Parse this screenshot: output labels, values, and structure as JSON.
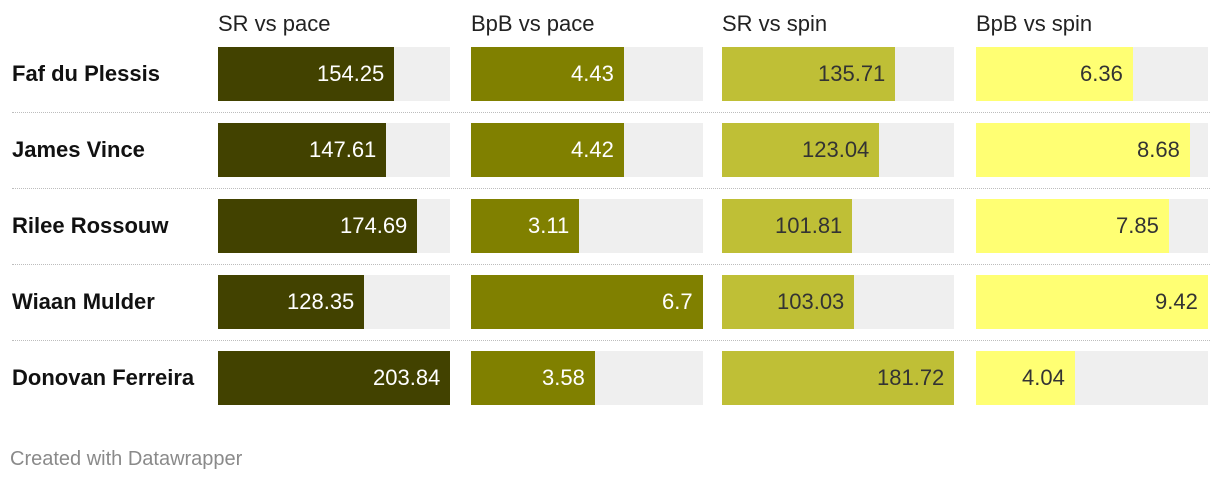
{
  "chart_data": {
    "type": "table",
    "columns": [
      {
        "name": "SR vs pace",
        "max": 203.84,
        "color": "#424200",
        "text_color": "#ffffff"
      },
      {
        "name": "BpB vs pace",
        "max": 6.7,
        "color": "#808000",
        "text_color": "#ffffff"
      },
      {
        "name": "SR vs spin",
        "max": 181.72,
        "color": "#bfbf36",
        "text_color": "#333333"
      },
      {
        "name": "BpB vs spin",
        "max": 9.42,
        "color": "#ffff73",
        "text_color": "#333333"
      }
    ],
    "rows": [
      {
        "player": "Faf du Plessis",
        "values": [
          154.25,
          4.43,
          135.71,
          6.36
        ],
        "labels": [
          "154.25",
          "4.43",
          "135.71",
          "6.36"
        ]
      },
      {
        "player": "James Vince",
        "values": [
          147.61,
          4.42,
          123.04,
          8.68
        ],
        "labels": [
          "147.61",
          "4.42",
          "123.04",
          "8.68"
        ]
      },
      {
        "player": "Rilee Rossouw",
        "values": [
          174.69,
          3.11,
          101.81,
          7.85
        ],
        "labels": [
          "174.69",
          "3.11",
          "101.81",
          "7.85"
        ]
      },
      {
        "player": "Wiaan Mulder",
        "values": [
          128.35,
          6.7,
          103.03,
          9.42
        ],
        "labels": [
          "128.35",
          "6.7",
          "103.03",
          "9.42"
        ]
      },
      {
        "player": "Donovan Ferreira",
        "values": [
          203.84,
          3.58,
          181.72,
          4.04
        ],
        "labels": [
          "203.84",
          "3.58",
          "181.72",
          "4.04"
        ]
      }
    ]
  },
  "footer": {
    "credit": "Created with Datawrapper"
  }
}
